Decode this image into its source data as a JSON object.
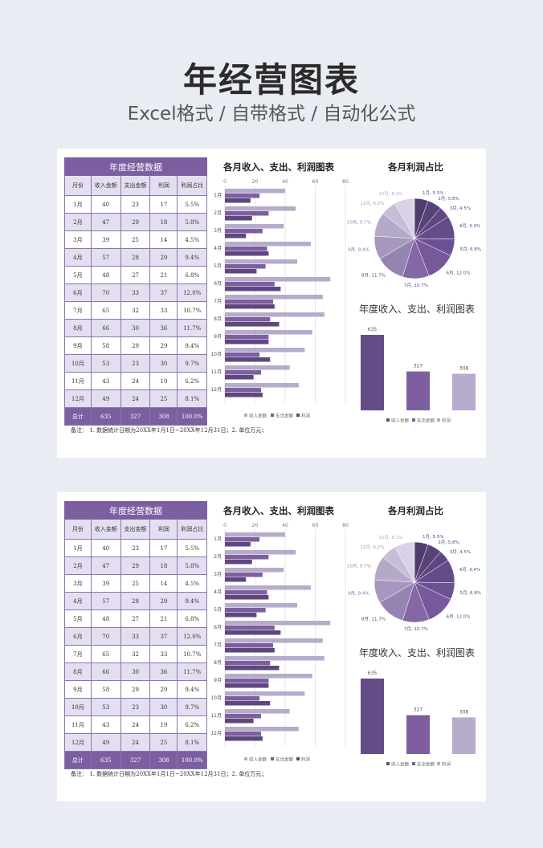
{
  "hero": {
    "title": "年经营图表",
    "subtitle": "Excel格式 / 自带格式 / 自动化公式"
  },
  "table": {
    "title": "年度经营数据",
    "headers": [
      "月份",
      "收入金额",
      "支出金额",
      "利润",
      "利润占比"
    ],
    "rows": [
      [
        "1月",
        "40",
        "23",
        "17",
        "5.5%"
      ],
      [
        "2月",
        "47",
        "29",
        "18",
        "5.8%"
      ],
      [
        "3月",
        "39",
        "25",
        "14",
        "4.5%"
      ],
      [
        "4月",
        "57",
        "28",
        "29",
        "9.4%"
      ],
      [
        "5月",
        "48",
        "27",
        "21",
        "6.8%"
      ],
      [
        "6月",
        "70",
        "33",
        "37",
        "12.0%"
      ],
      [
        "7月",
        "65",
        "32",
        "33",
        "10.7%"
      ],
      [
        "8月",
        "66",
        "30",
        "36",
        "11.7%"
      ],
      [
        "9月",
        "58",
        "29",
        "29",
        "9.4%"
      ],
      [
        "10月",
        "53",
        "23",
        "30",
        "9.7%"
      ],
      [
        "11月",
        "43",
        "24",
        "19",
        "6.2%"
      ],
      [
        "12月",
        "49",
        "24",
        "25",
        "8.1%"
      ]
    ],
    "total": [
      "总计",
      "635",
      "327",
      "308",
      "100.0%"
    ]
  },
  "note": "备注：    1. 数据统计日期为20XX年1月1日~20XX年12月31日；2. 单位万元；",
  "colors": {
    "header": "#7b5fa0",
    "revenue": "#b7abcb",
    "expense": "#7d5f9f",
    "profit": "#5e4680"
  },
  "chart_data": [
    {
      "type": "bar",
      "orientation": "horizontal",
      "title": "各月收入、支出、利润图表",
      "categories": [
        "1月",
        "2月",
        "3月",
        "4月",
        "5月",
        "6月",
        "7月",
        "8月",
        "9月",
        "10月",
        "11月",
        "12月"
      ],
      "xlim": [
        0,
        80
      ],
      "xticks": [
        "0",
        "20",
        "40",
        "60",
        "80"
      ],
      "legend_position": "bottom",
      "series": [
        {
          "name": "收入金额",
          "values": [
            40,
            47,
            39,
            57,
            48,
            70,
            65,
            66,
            58,
            53,
            43,
            49
          ]
        },
        {
          "name": "支出金额",
          "values": [
            23,
            29,
            25,
            28,
            27,
            33,
            32,
            30,
            29,
            23,
            24,
            24
          ]
        },
        {
          "name": "利润",
          "values": [
            17,
            18,
            14,
            29,
            21,
            37,
            33,
            36,
            29,
            30,
            19,
            25
          ]
        }
      ]
    },
    {
      "type": "pie",
      "title": "各月利润占比",
      "labels": [
        "1月, 5.5%",
        "2月, 5.8%",
        "3月, 4.5%",
        "4月, 9.4%",
        "5月, 6.8%",
        "6月, 12.0%",
        "7月, 10.7%",
        "8月, 11.7%",
        "9月, 9.4%",
        "10月, 9.7%",
        "11月, 6.2%",
        "12月, 8.1%"
      ],
      "values": [
        5.5,
        5.8,
        4.5,
        9.4,
        6.8,
        12.0,
        10.7,
        11.7,
        9.4,
        9.7,
        6.2,
        8.1
      ],
      "colors": [
        "#4f3b6d",
        "#58427a",
        "#5e4680",
        "#654b89",
        "#6c5192",
        "#76589c",
        "#8468a6",
        "#9584b2",
        "#a597be",
        "#b5a9c9",
        "#c6bdd6",
        "#d8d2e4"
      ]
    },
    {
      "type": "bar",
      "title": "年度收入、支出、利润图表",
      "categories": [
        "收入金额",
        "支出金额",
        "利润"
      ],
      "values": [
        635,
        327,
        308
      ],
      "data_labels": [
        "635",
        "327",
        "308"
      ],
      "colors": [
        "#644d86",
        "#7d5f9f",
        "#b7abcb"
      ],
      "legend_position": "bottom"
    }
  ]
}
